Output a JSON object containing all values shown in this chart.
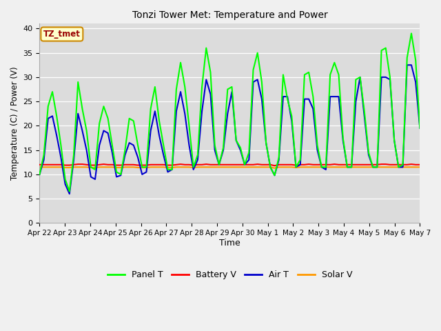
{
  "title": "Tonzi Tower Met: Temperature and Power",
  "xlabel": "Time",
  "ylabel": "Temperature (C) / Power (V)",
  "ylim": [
    0,
    41
  ],
  "yticks": [
    0,
    5,
    10,
    15,
    20,
    25,
    30,
    35,
    40
  ],
  "fig_bg_color": "#f0f0f0",
  "plot_bg_color": "#dcdcdc",
  "annotation_text": "TZ_tmet",
  "annotation_bg": "#ffffcc",
  "annotation_border": "#cc8800",
  "annotation_text_color": "#990000",
  "x_tick_labels": [
    "Apr 22",
    "Apr 23",
    "Apr 24",
    "Apr 25",
    "Apr 26",
    "Apr 27",
    "Apr 28",
    "Apr 29",
    "Apr 30",
    "May 1",
    "May 2",
    "May 3",
    "May 4",
    "May 5",
    "May 6",
    "May 7"
  ],
  "colors": {
    "panel_t": "#00ff00",
    "battery_v": "#ff0000",
    "air_t": "#0000cc",
    "solar_v": "#ff9900"
  },
  "legend_labels": [
    "Panel T",
    "Battery V",
    "Air T",
    "Solar V"
  ],
  "panel_t": [
    10.0,
    14.0,
    24.0,
    27.0,
    22.0,
    16.0,
    9.0,
    6.5,
    14.0,
    29.0,
    23.5,
    19.0,
    11.5,
    11.0,
    20.5,
    24.0,
    21.5,
    16.0,
    10.5,
    10.0,
    15.0,
    21.5,
    21.0,
    16.0,
    11.5,
    11.5,
    23.5,
    28.0,
    21.0,
    16.0,
    11.0,
    11.0,
    27.5,
    33.0,
    28.0,
    20.0,
    11.5,
    14.0,
    28.0,
    36.0,
    31.0,
    16.0,
    12.0,
    15.5,
    27.5,
    28.0,
    17.0,
    15.5,
    12.0,
    14.5,
    31.5,
    35.0,
    29.0,
    16.5,
    11.5,
    9.8,
    13.5,
    30.5,
    25.5,
    22.0,
    11.5,
    13.0,
    30.5,
    31.0,
    26.0,
    16.0,
    11.5,
    11.5,
    30.5,
    33.0,
    30.5,
    17.5,
    11.5,
    11.5,
    29.5,
    30.0,
    23.0,
    14.5,
    11.5,
    11.5,
    35.5,
    36.0,
    30.0,
    17.0,
    11.5,
    12.0,
    34.0,
    39.0,
    33.5,
    19.5
  ],
  "air_t": [
    10.0,
    13.0,
    21.5,
    22.0,
    18.0,
    13.5,
    8.0,
    6.0,
    13.0,
    22.5,
    19.0,
    15.0,
    9.5,
    9.0,
    16.0,
    19.0,
    18.5,
    14.5,
    9.5,
    9.8,
    14.0,
    16.5,
    16.0,
    13.5,
    10.0,
    10.5,
    19.0,
    23.0,
    18.0,
    14.0,
    10.5,
    11.0,
    23.0,
    27.0,
    22.5,
    16.0,
    11.0,
    13.0,
    23.0,
    29.5,
    26.5,
    15.0,
    12.0,
    15.0,
    22.5,
    27.0,
    17.0,
    15.0,
    12.0,
    13.0,
    29.0,
    29.5,
    25.5,
    16.5,
    11.5,
    9.8,
    13.0,
    26.0,
    26.0,
    21.0,
    11.5,
    12.0,
    25.5,
    25.5,
    23.5,
    15.0,
    11.5,
    11.0,
    26.0,
    26.0,
    26.0,
    17.0,
    11.5,
    11.5,
    25.0,
    30.0,
    22.0,
    14.0,
    11.5,
    11.5,
    30.0,
    30.0,
    29.5,
    17.0,
    11.5,
    11.5,
    32.5,
    32.5,
    29.0,
    19.5
  ],
  "battery_v": [
    12.0,
    12.0,
    12.0,
    12.0,
    12.0,
    12.0,
    11.9,
    11.9,
    12.0,
    12.1,
    12.1,
    12.0,
    11.9,
    11.9,
    12.0,
    12.1,
    12.0,
    12.0,
    11.9,
    11.9,
    12.0,
    12.0,
    12.0,
    11.9,
    11.9,
    11.9,
    12.0,
    12.0,
    12.0,
    12.0,
    11.9,
    11.9,
    12.0,
    12.1,
    12.0,
    12.0,
    11.9,
    12.0,
    12.0,
    12.1,
    12.0,
    12.0,
    12.0,
    12.0,
    12.0,
    12.0,
    12.0,
    12.0,
    12.0,
    12.0,
    12.0,
    12.1,
    12.0,
    12.0,
    12.0,
    11.8,
    12.0,
    12.0,
    12.0,
    12.0,
    11.9,
    12.0,
    12.0,
    12.1,
    12.0,
    12.0,
    12.0,
    12.0,
    12.0,
    12.1,
    12.0,
    12.0,
    12.0,
    12.0,
    12.0,
    12.0,
    12.0,
    12.0,
    12.0,
    12.0,
    12.1,
    12.1,
    12.0,
    12.0,
    12.0,
    12.0,
    12.0,
    12.1,
    12.0,
    12.0
  ],
  "solar_v": [
    11.5,
    11.5,
    11.5,
    11.5,
    11.5,
    11.5,
    11.4,
    11.4,
    11.5,
    11.5,
    11.5,
    11.5,
    11.4,
    11.4,
    11.5,
    11.5,
    11.5,
    11.5,
    11.4,
    11.4,
    11.5,
    11.5,
    11.5,
    11.4,
    11.4,
    11.4,
    11.5,
    11.5,
    11.5,
    11.5,
    11.4,
    11.4,
    11.5,
    11.5,
    11.5,
    11.5,
    11.4,
    11.5,
    11.5,
    11.5,
    11.5,
    11.5,
    11.5,
    11.5,
    11.5,
    11.5,
    11.5,
    11.5,
    11.5,
    11.5,
    11.5,
    11.5,
    11.5,
    11.5,
    11.5,
    11.3,
    11.5,
    11.5,
    11.5,
    11.5,
    11.4,
    11.5,
    11.5,
    11.5,
    11.5,
    11.5,
    11.5,
    11.5,
    11.5,
    11.5,
    11.5,
    11.5,
    11.5,
    11.5,
    11.5,
    11.5,
    11.5,
    11.5,
    11.5,
    11.5,
    11.5,
    11.5,
    11.5,
    11.5,
    11.5,
    11.5,
    11.5,
    11.5,
    11.5,
    11.5
  ]
}
